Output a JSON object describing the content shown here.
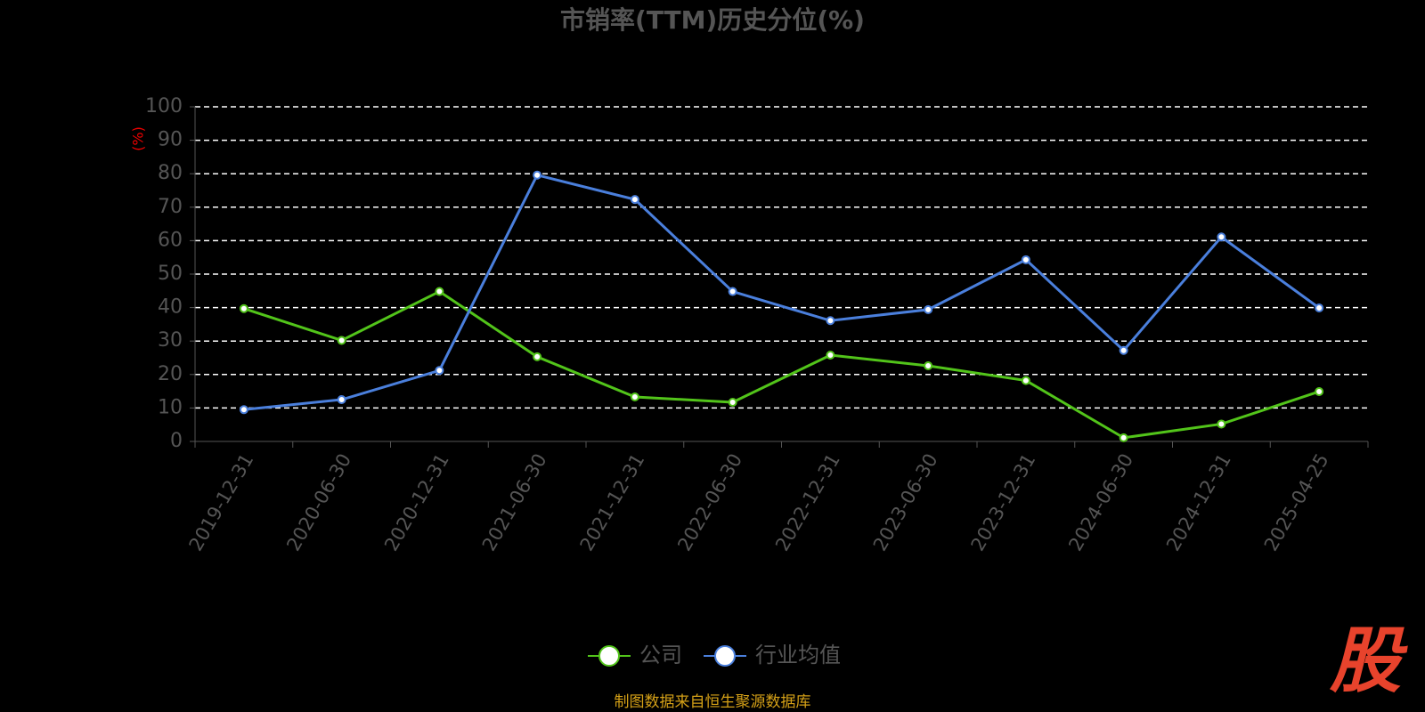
{
  "chart_data": {
    "type": "line",
    "title": "市销率(TTM)历史分位(%)",
    "y_label": "(%)",
    "categories": [
      "2019-12-31",
      "2020-06-30",
      "2020-12-31",
      "2021-06-30",
      "2021-12-31",
      "2022-06-30",
      "2022-12-31",
      "2023-06-30",
      "2023-12-31",
      "2024-06-30",
      "2024-12-31",
      "2025-04-25"
    ],
    "series": [
      {
        "name": "公司",
        "color": "#52c41a",
        "values": [
          39.7,
          30.2,
          44.8,
          25.3,
          13.3,
          11.7,
          25.8,
          22.6,
          18.2,
          1.1,
          5.2,
          14.9
        ]
      },
      {
        "name": "行业均值",
        "color": "#4a7fdc",
        "values": [
          9.5,
          12.5,
          21.2,
          79.6,
          72.3,
          44.8,
          36.1,
          39.4,
          54.3,
          27.2,
          61.1,
          39.9
        ]
      }
    ],
    "ylim": [
      0,
      100
    ],
    "yticks": [
      0,
      10,
      20,
      30,
      40,
      50,
      60,
      70,
      80,
      90,
      100
    ],
    "grid": true,
    "legend": "bottom",
    "source": "制图数据来自恒生聚源数据库",
    "watermark": "股"
  }
}
